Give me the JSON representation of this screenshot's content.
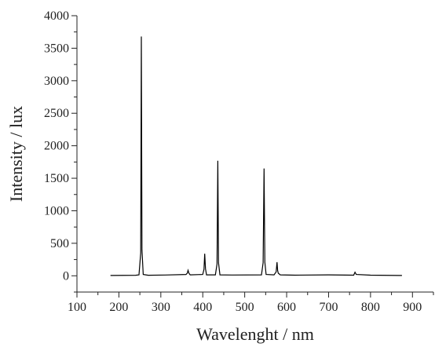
{
  "chart_data": {
    "type": "line",
    "title": "",
    "xlabel": "Wavelenght / nm",
    "ylabel": "Intensity / lux",
    "xlim": [
      100,
      950
    ],
    "ylim": [
      -250,
      4000
    ],
    "x_ticks": [
      100,
      200,
      300,
      400,
      500,
      600,
      700,
      800,
      900
    ],
    "y_ticks": [
      0,
      500,
      1000,
      1500,
      2000,
      2500,
      3000,
      3500,
      4000
    ],
    "x_tick_labels": [
      "100",
      "200",
      "300",
      "400",
      "500",
      "600",
      "700",
      "800",
      "900"
    ],
    "y_tick_labels": [
      "0",
      "500",
      "1000",
      "1500",
      "2000",
      "2500",
      "3000",
      "3500",
      "4000"
    ],
    "grid": false,
    "line_color": "#000000",
    "series": [
      {
        "x": [
          180,
          240,
          248,
          252,
          253.5,
          255,
          258,
          270,
          310,
          360,
          363,
          365,
          367,
          370,
          400,
          403,
          404.7,
          406.5,
          409,
          430,
          434,
          435.8,
          437.5,
          441,
          470,
          540,
          544,
          546.1,
          548,
          551,
          570,
          575,
          577,
          578.5,
          580,
          585,
          620,
          700,
          760,
          763,
          766,
          800,
          875
        ],
        "y": [
          5,
          8,
          15,
          350,
          3680,
          400,
          20,
          8,
          12,
          20,
          40,
          85,
          40,
          15,
          20,
          100,
          340,
          110,
          15,
          15,
          180,
          1770,
          200,
          15,
          12,
          15,
          200,
          1650,
          210,
          20,
          15,
          60,
          210,
          80,
          40,
          15,
          10,
          15,
          10,
          55,
          20,
          10,
          5
        ]
      }
    ]
  }
}
